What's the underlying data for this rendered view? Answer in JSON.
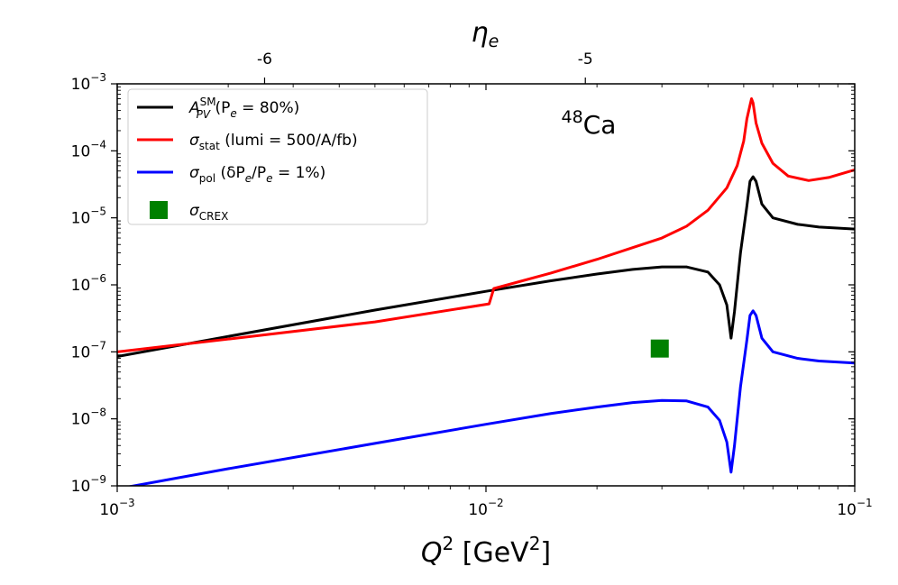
{
  "chart_data": {
    "type": "line",
    "title": "",
    "xlabel": "Q² [GeV²]",
    "xlabel_parts": {
      "base": "Q",
      "sup": "2",
      "rest": " [GeV",
      "sup2": "2",
      "end": "]"
    },
    "ylabel": "",
    "xscale": "log",
    "yscale": "log",
    "xlim": [
      0.001,
      0.1
    ],
    "ylim": [
      1e-09,
      0.001
    ],
    "x_ticks": [
      {
        "value": 0.001,
        "base": "10",
        "exp": "−3"
      },
      {
        "value": 0.01,
        "base": "10",
        "exp": "−2"
      },
      {
        "value": 0.1,
        "base": "10",
        "exp": "−1"
      }
    ],
    "y_ticks": [
      {
        "value": 1e-09,
        "base": "10",
        "exp": "−9"
      },
      {
        "value": 1e-08,
        "base": "10",
        "exp": "−8"
      },
      {
        "value": 1e-07,
        "base": "10",
        "exp": "−7"
      },
      {
        "value": 1e-06,
        "base": "10",
        "exp": "−6"
      },
      {
        "value": 1e-05,
        "base": "10",
        "exp": "−5"
      },
      {
        "value": 0.0001,
        "base": "10",
        "exp": "−4"
      },
      {
        "value": 0.001,
        "base": "10",
        "exp": "−3"
      }
    ],
    "top_axis": {
      "label": "η",
      "label_sub": "e",
      "ticks": [
        {
          "value": 0.00251,
          "label": "-6"
        },
        {
          "value": 0.0186,
          "label": "-5"
        }
      ]
    },
    "annotation": {
      "sup": "48",
      "text": "Ca",
      "x": 0.016,
      "y": 0.00025
    },
    "legend_position": "top-left",
    "series": [
      {
        "name": "A_PV^SM (P_e = 80%)",
        "legend": {
          "main": "A",
          "sub": "PV",
          "sup": "SM",
          "rest": " (P",
          "rest_sub": "e",
          "tail": " = 80%)"
        },
        "color": "#000000",
        "points": [
          [
            0.001,
            8.5e-08
          ],
          [
            0.002,
            1.7e-07
          ],
          [
            0.005,
            4.2e-07
          ],
          [
            0.01,
            8e-07
          ],
          [
            0.015,
            1.15e-06
          ],
          [
            0.02,
            1.45e-06
          ],
          [
            0.025,
            1.7e-06
          ],
          [
            0.03,
            1.85e-06
          ],
          [
            0.035,
            1.85e-06
          ],
          [
            0.04,
            1.55e-06
          ],
          [
            0.043,
            1e-06
          ],
          [
            0.045,
            5e-07
          ],
          [
            0.0462,
            1.6e-07
          ],
          [
            0.0472,
            4e-07
          ],
          [
            0.049,
            3e-06
          ],
          [
            0.051,
            1.5e-05
          ],
          [
            0.052,
            3.5e-05
          ],
          [
            0.053,
            4.1e-05
          ],
          [
            0.054,
            3.5e-05
          ],
          [
            0.056,
            1.6e-05
          ],
          [
            0.06,
            1e-05
          ],
          [
            0.07,
            8e-06
          ],
          [
            0.08,
            7.3e-06
          ],
          [
            0.1,
            6.8e-06
          ]
        ]
      },
      {
        "name": "σ_stat (lumi = 500/A/fb)",
        "legend": {
          "main": "σ",
          "sub": "stat",
          "rest": " (lumi = 500/A/fb)"
        },
        "color": "#ff0000",
        "points": [
          [
            0.001,
            1e-07
          ],
          [
            0.002,
            1.55e-07
          ],
          [
            0.005,
            2.8e-07
          ],
          [
            0.0102,
            5.2e-07
          ],
          [
            0.0105,
            8.8e-07
          ],
          [
            0.015,
            1.5e-06
          ],
          [
            0.02,
            2.4e-06
          ],
          [
            0.025,
            3.6e-06
          ],
          [
            0.03,
            5e-06
          ],
          [
            0.035,
            7.5e-06
          ],
          [
            0.04,
            1.3e-05
          ],
          [
            0.045,
            2.8e-05
          ],
          [
            0.048,
            6e-05
          ],
          [
            0.05,
            0.00014
          ],
          [
            0.051,
            0.0003
          ],
          [
            0.052,
            0.00048
          ],
          [
            0.0525,
            0.0006
          ],
          [
            0.053,
            0.00052
          ],
          [
            0.054,
            0.00026
          ],
          [
            0.056,
            0.00013
          ],
          [
            0.06,
            6.5e-05
          ],
          [
            0.066,
            4.2e-05
          ],
          [
            0.075,
            3.6e-05
          ],
          [
            0.085,
            4e-05
          ],
          [
            0.1,
            5.2e-05
          ]
        ]
      },
      {
        "name": "σ_pol (δP_e/P_e = 1%)",
        "legend": {
          "main": "σ",
          "sub": "pol",
          "rest": " (δP",
          "rest_sub": "e",
          "mid": "/P",
          "mid_sub": "e",
          "tail": " = 1%)"
        },
        "color": "#0000ff",
        "points": [
          [
            0.001,
            9e-10
          ],
          [
            0.002,
            1.8e-09
          ],
          [
            0.005,
            4.3e-09
          ],
          [
            0.01,
            8.3e-09
          ],
          [
            0.015,
            1.2e-08
          ],
          [
            0.02,
            1.5e-08
          ],
          [
            0.025,
            1.75e-08
          ],
          [
            0.03,
            1.88e-08
          ],
          [
            0.035,
            1.85e-08
          ],
          [
            0.04,
            1.5e-08
          ],
          [
            0.043,
            9.5e-09
          ],
          [
            0.045,
            4.5e-09
          ],
          [
            0.0462,
            1.6e-09
          ],
          [
            0.0472,
            4e-09
          ],
          [
            0.049,
            3e-08
          ],
          [
            0.051,
            1.5e-07
          ],
          [
            0.052,
            3.5e-07
          ],
          [
            0.053,
            4.1e-07
          ],
          [
            0.054,
            3.5e-07
          ],
          [
            0.056,
            1.6e-07
          ],
          [
            0.06,
            1e-07
          ],
          [
            0.07,
            8e-08
          ],
          [
            0.08,
            7.3e-08
          ],
          [
            0.1,
            6.8e-08
          ]
        ]
      },
      {
        "name": "σ_CREX",
        "legend": {
          "main": "σ",
          "sub": "CREX"
        },
        "color": "#008000",
        "marker": "square",
        "points": [
          [
            0.0296,
            1.12e-07
          ]
        ]
      }
    ]
  }
}
